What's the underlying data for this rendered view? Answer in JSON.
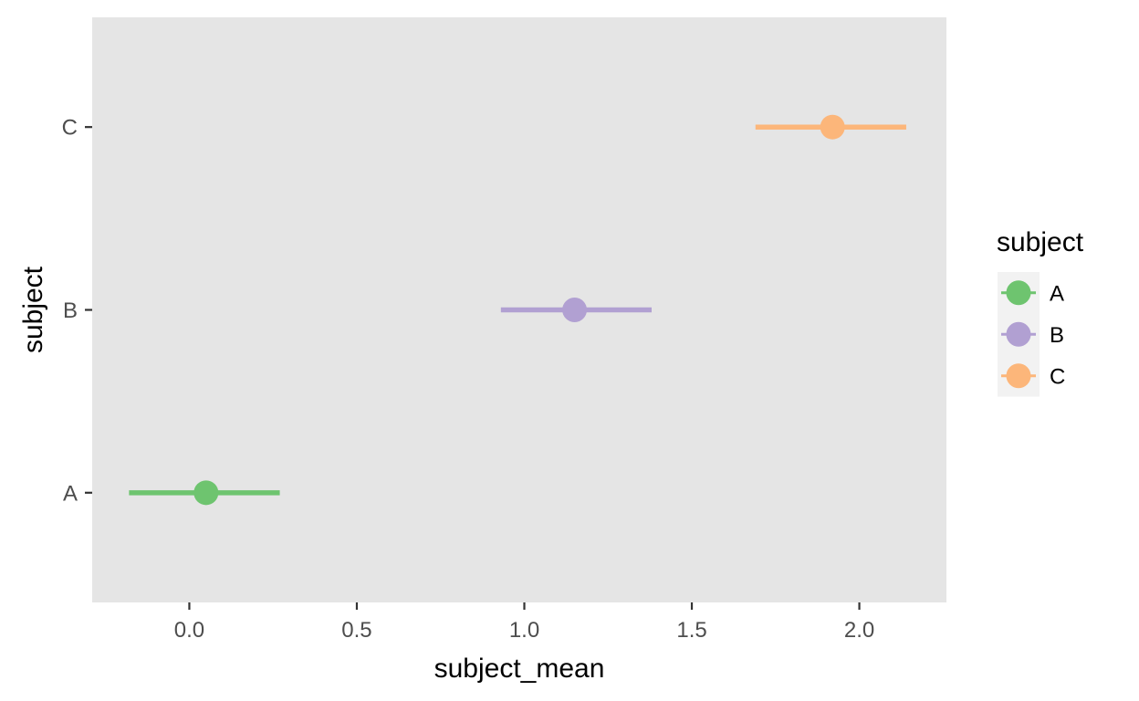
{
  "chart_data": {
    "type": "scatter",
    "subtype": "point-range",
    "xlabel": "subject_mean",
    "ylabel": "subject",
    "xlim": [
      -0.29,
      2.26
    ],
    "x_ticks": [
      0.0,
      0.5,
      1.0,
      1.5,
      2.0
    ],
    "x_tick_labels": [
      "0.0",
      "0.5",
      "1.0",
      "1.5",
      "2.0"
    ],
    "categories": [
      "A",
      "B",
      "C"
    ],
    "grid": false,
    "panel_background": "#e5e5e5",
    "series": [
      {
        "name": "A",
        "mean": 0.05,
        "lower": -0.18,
        "upper": 0.27,
        "color": "#6ec46f"
      },
      {
        "name": "B",
        "mean": 1.15,
        "lower": 0.93,
        "upper": 1.38,
        "color": "#b1a0d2"
      },
      {
        "name": "C",
        "mean": 1.92,
        "lower": 1.69,
        "upper": 2.14,
        "color": "#fcb67a"
      }
    ],
    "legend": {
      "title": "subject",
      "position": "right",
      "entries": [
        "A",
        "B",
        "C"
      ]
    }
  }
}
